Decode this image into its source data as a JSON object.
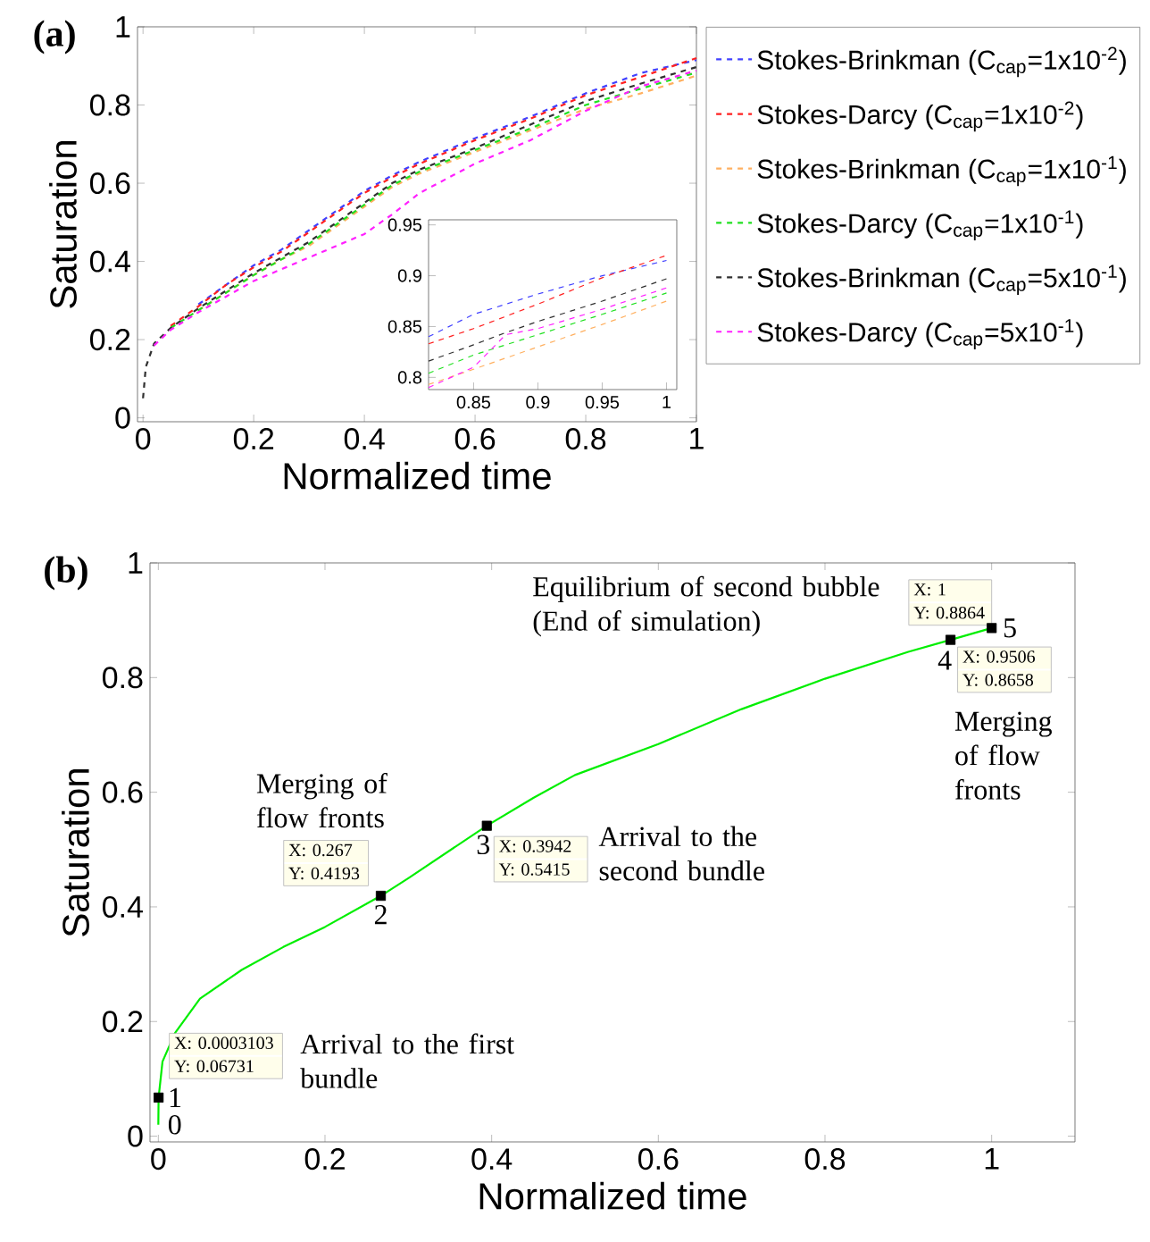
{
  "chart_data": [
    {
      "type": "line",
      "title": "(a)",
      "xlabel": "Normalized time",
      "ylabel": "Saturation",
      "line_style": "dashed",
      "legend": "right",
      "x": [
        0,
        0.005,
        0.02,
        0.05,
        0.1,
        0.15,
        0.2,
        0.25,
        0.3,
        0.35,
        0.4,
        0.45,
        0.5,
        0.6,
        0.7,
        0.8,
        0.9,
        1
      ],
      "series": [
        {
          "name": "Stokes-Brinkman (C$_{cap}$=1x10$^{-2}$)",
          "color": "#4040ff",
          "values": [
            null,
            null,
            null,
            null,
            0.29,
            0.34,
            0.39,
            0.43,
            0.48,
            0.53,
            0.58,
            0.62,
            0.655,
            0.715,
            0.77,
            0.83,
            0.882,
            0.915
          ]
        },
        {
          "name": "Stokes-Darcy (C$_{cap}$=1x10$^{-2}$)",
          "color": "#ff2020",
          "values": [
            null,
            null,
            null,
            0.235,
            0.285,
            0.34,
            0.385,
            0.425,
            0.475,
            0.525,
            0.575,
            0.615,
            0.65,
            0.71,
            0.765,
            0.825,
            0.872,
            0.92
          ]
        },
        {
          "name": "Stokes-Brinkman (C$_{cap}$=1x10$^{-1}$)",
          "color": "#ffb060",
          "values": [
            null,
            null,
            null,
            null,
            0.275,
            0.32,
            0.365,
            0.405,
            0.44,
            0.49,
            0.54,
            0.59,
            0.625,
            0.68,
            0.735,
            0.79,
            0.83,
            0.875
          ]
        },
        {
          "name": "Stokes-Darcy (C$_{cap}$=1x10$^{-1}$)",
          "color": "#20e020",
          "values": [
            null,
            null,
            null,
            0.23,
            0.275,
            0.32,
            0.365,
            0.405,
            0.445,
            0.495,
            0.545,
            0.595,
            0.63,
            0.685,
            0.74,
            0.8,
            0.842,
            0.883
          ]
        },
        {
          "name": "Stokes-Brinkman (C$_{cap}$=5x10$^{-1}$)",
          "color": "#303030",
          "values": [
            0.05,
            0.13,
            0.19,
            0.23,
            0.28,
            0.325,
            0.37,
            0.41,
            0.45,
            0.5,
            0.55,
            0.6,
            0.635,
            0.69,
            0.75,
            0.81,
            0.855,
            0.897
          ]
        },
        {
          "name": "Stokes-Darcy (C$_{cap}$=5x10$^{-1}$)",
          "color": "#ff20ff",
          "values": [
            null,
            null,
            0.185,
            0.225,
            0.27,
            0.31,
            0.35,
            0.38,
            0.41,
            0.44,
            0.47,
            0.52,
            0.575,
            0.65,
            0.71,
            0.785,
            0.848,
            0.888
          ]
        }
      ],
      "xlim": [
        -0.01,
        1.0
      ],
      "ylim": [
        -0.01,
        1.0
      ],
      "xticks": [
        0,
        0.2,
        0.4,
        0.6,
        0.8,
        1
      ],
      "yticks": [
        0,
        0.2,
        0.4,
        0.6,
        0.8,
        1
      ]
    },
    {
      "type": "line",
      "line_style": "dashed",
      "x": [
        0.815,
        0.85,
        0.875,
        0.9,
        0.95,
        1.0
      ],
      "series": [
        {
          "color": "#4040ff",
          "values": [
            0.84,
            0.862,
            0.872,
            0.882,
            0.9,
            0.915
          ]
        },
        {
          "color": "#ff2020",
          "values": [
            0.833,
            0.848,
            0.86,
            0.872,
            0.898,
            0.92
          ]
        },
        {
          "color": "#ffb060",
          "values": [
            0.793,
            0.808,
            0.819,
            0.83,
            0.852,
            0.875
          ]
        },
        {
          "color": "#20e020",
          "values": [
            0.804,
            0.822,
            0.832,
            0.842,
            0.862,
            0.883
          ]
        },
        {
          "color": "#303030",
          "values": [
            0.816,
            0.832,
            0.844,
            0.855,
            0.875,
            0.897
          ]
        },
        {
          "color": "#ff20ff",
          "values": [
            0.79,
            0.81,
            0.842,
            0.848,
            0.867,
            0.888
          ]
        }
      ],
      "xlim": [
        0.815,
        1.008
      ],
      "ylim": [
        0.788,
        0.955
      ],
      "xticks": [
        0.85,
        0.9,
        0.95,
        1
      ],
      "yticks": [
        0.8,
        0.85,
        0.9,
        0.95
      ]
    },
    {
      "type": "line",
      "title": "(b)",
      "xlabel": "Normalized time",
      "ylabel": "Saturation",
      "line_style": "solid",
      "series": [
        {
          "color": "#00ee00",
          "x": [
            0,
            0.0003103,
            0.005,
            0.02,
            0.05,
            0.1,
            0.15,
            0.2,
            0.267,
            0.3,
            0.3942,
            0.45,
            0.5,
            0.6,
            0.7,
            0.8,
            0.9,
            0.9506,
            1
          ],
          "values": [
            0.02,
            0.06731,
            0.13,
            0.18,
            0.24,
            0.29,
            0.33,
            0.365,
            0.4193,
            0.45,
            0.5415,
            0.59,
            0.63,
            0.684,
            0.745,
            0.798,
            0.845,
            0.8658,
            0.8864
          ]
        },
        {
          "type": "scatter",
          "marker": "square",
          "color": "#000000",
          "x": [
            0.0003103,
            0.267,
            0.3942,
            0.9506,
            1
          ],
          "values": [
            0.06731,
            0.4193,
            0.5415,
            0.8658,
            0.8864
          ]
        }
      ],
      "xlim": [
        -0.01,
        1.1
      ],
      "ylim": [
        -0.01,
        1.0
      ],
      "xticks": [
        0,
        0.2,
        0.4,
        0.6,
        0.8,
        1
      ],
      "yticks": [
        0,
        0.2,
        0.4,
        0.6,
        0.8,
        1
      ],
      "annotations": [
        {
          "text": "0",
          "x": 0,
          "y": 0.02
        },
        {
          "text": "1",
          "x": 0.0003103,
          "y": 0.06731
        },
        {
          "text": "2",
          "x": 0.267,
          "y": 0.4193
        },
        {
          "text": "3",
          "x": 0.3942,
          "y": 0.5415
        },
        {
          "text": "4",
          "x": 0.9506,
          "y": 0.8658
        },
        {
          "text": "5",
          "x": 1,
          "y": 0.8864
        },
        {
          "text": "X: 0.0003103",
          "x": 0.0003103,
          "y": 0.06731
        },
        {
          "text": "Y: 0.06731",
          "x": 0.0003103,
          "y": 0.06731
        },
        {
          "text": "X: 0.267",
          "x": 0.267,
          "y": 0.4193
        },
        {
          "text": "Y: 0.4193",
          "x": 0.267,
          "y": 0.4193
        },
        {
          "text": "X: 0.3942",
          "x": 0.3942,
          "y": 0.5415
        },
        {
          "text": "Y: 0.5415",
          "x": 0.3942,
          "y": 0.5415
        },
        "X: 1",
        {
          "text": "Y: 0.8864",
          "x": 1,
          "y": 0.8864
        },
        {
          "text": "X: 0.9506",
          "x": 0.9506,
          "y": 0.8658
        },
        {
          "text": "Y: 0.8658",
          "x": 0.9506,
          "y": 0.8658
        },
        {
          "text": "Merging of flow fronts",
          "x": 0.267,
          "y": 0.4193
        },
        "Arrival to the second bundle",
        "Arrival to the first bundle",
        "Equilibrium of second bubble (End of simulation)",
        {
          "text": "Merging of flow fronts",
          "x": 0.9506,
          "y": 0.8658
        }
      ]
    }
  ]
}
